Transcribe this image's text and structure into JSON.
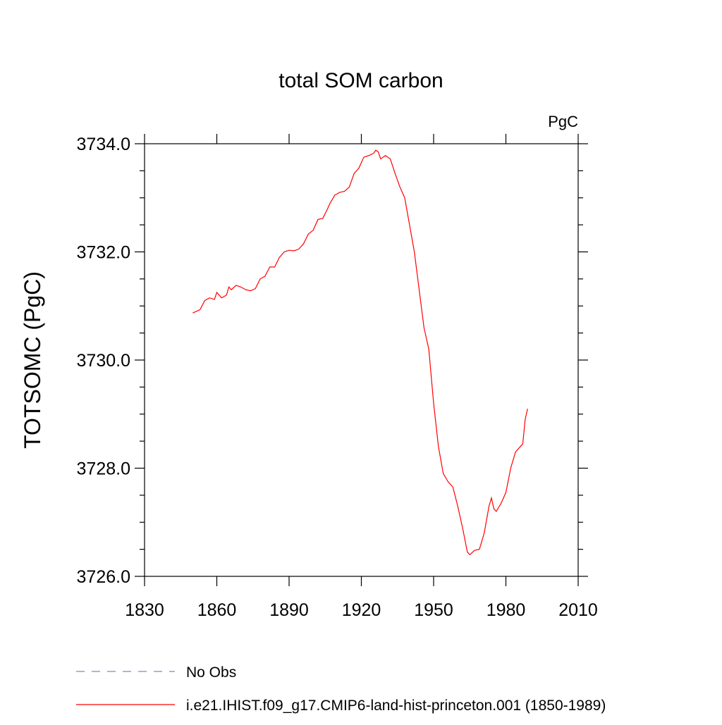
{
  "chart_data": {
    "type": "line",
    "title": "total SOM carbon",
    "units": "PgC",
    "ylabel": "TOTSOMC  (PgC)",
    "x": [
      1850,
      1853,
      1855,
      1857,
      1859,
      1860,
      1862,
      1864,
      1865,
      1866,
      1868,
      1870,
      1872,
      1874,
      1876,
      1878,
      1880,
      1882,
      1884,
      1886,
      1888,
      1890,
      1892,
      1894,
      1896,
      1898,
      1900,
      1902,
      1904,
      1906,
      1907,
      1909,
      1911,
      1913,
      1915,
      1917,
      1919,
      1921,
      1923,
      1925,
      1926,
      1927,
      1928,
      1930,
      1932,
      1934,
      1936,
      1938,
      1940,
      1942,
      1944,
      1946,
      1948,
      1950,
      1952,
      1954,
      1956,
      1958,
      1960,
      1962,
      1964,
      1965,
      1967,
      1969,
      1971,
      1973,
      1974,
      1975,
      1976,
      1978,
      1980,
      1982,
      1984,
      1986,
      1987,
      1988,
      1989
    ],
    "series": [
      {
        "name": "i.e21.IHIST.f09_g17.CMIP6-land-hist-princeton.001 (1850-1989)",
        "color": "#ff0000",
        "values": [
          3730.87,
          3730.93,
          3731.1,
          3731.15,
          3731.12,
          3731.25,
          3731.15,
          3731.2,
          3731.35,
          3731.3,
          3731.38,
          3731.35,
          3731.3,
          3731.28,
          3731.32,
          3731.5,
          3731.55,
          3731.72,
          3731.72,
          3731.9,
          3732.0,
          3732.03,
          3732.02,
          3732.05,
          3732.15,
          3732.33,
          3732.4,
          3732.6,
          3732.62,
          3732.8,
          3732.9,
          3733.05,
          3733.1,
          3733.12,
          3733.2,
          3733.45,
          3733.55,
          3733.75,
          3733.78,
          3733.82,
          3733.88,
          3733.85,
          3733.72,
          3733.78,
          3733.72,
          3733.45,
          3733.2,
          3733.0,
          3732.5,
          3732.0,
          3731.3,
          3730.6,
          3730.2,
          3729.2,
          3728.4,
          3727.9,
          3727.75,
          3727.65,
          3727.3,
          3726.9,
          3726.45,
          3726.4,
          3726.48,
          3726.5,
          3726.8,
          3727.3,
          3727.45,
          3727.25,
          3727.2,
          3727.35,
          3727.55,
          3728.0,
          3728.3,
          3728.4,
          3728.45,
          3728.9,
          3729.1
        ]
      }
    ],
    "legend_extra": [
      {
        "name": "No Obs",
        "color": "#8a80c8",
        "dash": "12 10"
      }
    ],
    "xlim": [
      1830,
      2010
    ],
    "xticks": [
      1830,
      1860,
      1890,
      1920,
      1950,
      1980,
      2010
    ],
    "ylim": [
      3726,
      3734
    ],
    "yticks": [
      {
        "value": 3726,
        "label": "3726.0"
      },
      {
        "value": 3728,
        "label": "3728.0"
      },
      {
        "value": 3730,
        "label": "3730.0"
      },
      {
        "value": 3732,
        "label": "3732.0"
      },
      {
        "value": 3734,
        "label": "3734.0"
      }
    ],
    "yminorticks": [
      3726.5,
      3727,
      3727.5,
      3728.5,
      3729,
      3729.5,
      3730.5,
      3731,
      3731.5,
      3732.5,
      3733,
      3733.5
    ]
  }
}
